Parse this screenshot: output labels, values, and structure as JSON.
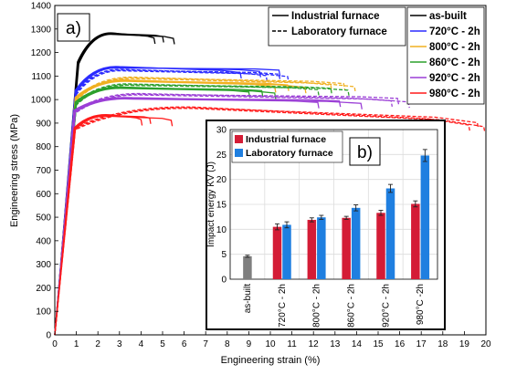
{
  "chart_data": [
    {
      "type": "line",
      "panel_label": "a)",
      "xlabel": "Engineering strain (%)",
      "ylabel": "Engineering stress (MPa)",
      "xlim": [
        0,
        20
      ],
      "ylim": [
        0,
        1400
      ],
      "x_ticks": [
        0,
        1,
        2,
        3,
        4,
        5,
        6,
        7,
        8,
        9,
        10,
        11,
        12,
        13,
        14,
        15,
        16,
        17,
        18,
        19,
        20
      ],
      "y_ticks": [
        0,
        100,
        200,
        300,
        400,
        500,
        600,
        700,
        800,
        900,
        1000,
        1100,
        1200,
        1300,
        1400
      ],
      "grid": false,
      "legend_style": {
        "position": "top-center",
        "entries": [
          {
            "label": "Industrial furnace",
            "line": "solid",
            "color": "#000000"
          },
          {
            "label": "Laboratory furnace",
            "line": "dashed",
            "color": "#000000"
          }
        ]
      },
      "legend_conditions": {
        "position": "top-right",
        "entries": [
          {
            "label": "as-built",
            "color": "#000000"
          },
          {
            "label": "720°C - 2h",
            "color": "#2b2bff"
          },
          {
            "label": "800°C - 2h",
            "color": "#f0b020"
          },
          {
            "label": "860°C - 2h",
            "color": "#2ca02c"
          },
          {
            "label": "920°C - 2h",
            "color": "#9b3fd6"
          },
          {
            "label": "980°C - 2h",
            "color": "#ff1a1a"
          }
        ]
      },
      "series": [
        {
          "name": "as-built",
          "color": "#000000",
          "dash": false,
          "elastic_end": [
            1.05,
            1160
          ],
          "peak": [
            2.7,
            1283
          ],
          "fracture": [
            [
              4.6,
              1262
            ],
            [
              5.0,
              1268
            ],
            [
              5.5,
              1260
            ]
          ]
        },
        {
          "name": "720°C - 2h",
          "color": "#2b2bff",
          "dash": false,
          "elastic_end": [
            0.95,
            1040
          ],
          "peak": [
            3.0,
            1140
          ],
          "fracture": [
            [
              8.6,
              1115
            ],
            [
              9.5,
              1120
            ],
            [
              10.4,
              1125
            ]
          ]
        },
        {
          "name": "720°C - 2h",
          "color": "#2b2bff",
          "dash": true,
          "elastic_end": [
            0.95,
            1030
          ],
          "peak": [
            3.2,
            1128
          ],
          "fracture": [
            [
              9.8,
              1102
            ],
            [
              10.4,
              1108
            ],
            [
              10.8,
              1098
            ]
          ]
        },
        {
          "name": "800°C - 2h",
          "color": "#f0b020",
          "dash": false,
          "elastic_end": [
            0.95,
            1010
          ],
          "peak": [
            3.5,
            1083
          ],
          "fracture": [
            [
              10.2,
              1055
            ],
            [
              10.8,
              1062
            ],
            [
              11.6,
              1052
            ]
          ]
        },
        {
          "name": "800°C - 2h",
          "color": "#f0b020",
          "dash": true,
          "elastic_end": [
            0.95,
            1005
          ],
          "peak": [
            3.8,
            1095
          ],
          "fracture": [
            [
              12.8,
              1062
            ],
            [
              13.4,
              1068
            ],
            [
              13.9,
              1055
            ]
          ]
        },
        {
          "name": "860°C - 2h",
          "color": "#2ca02c",
          "dash": false,
          "elastic_end": [
            0.95,
            990
          ],
          "peak": [
            3.3,
            1053
          ],
          "fracture": [
            [
              9.0,
              1032
            ],
            [
              9.6,
              1038
            ],
            [
              10.2,
              1028
            ]
          ]
        },
        {
          "name": "860°C - 2h",
          "color": "#2ca02c",
          "dash": true,
          "elastic_end": [
            0.95,
            985
          ],
          "peak": [
            3.6,
            1066
          ],
          "fracture": [
            [
              12.2,
              1042
            ],
            [
              12.8,
              1048
            ],
            [
              13.6,
              1040
            ]
          ]
        },
        {
          "name": "920°C - 2h",
          "color": "#9b3fd6",
          "dash": false,
          "elastic_end": [
            0.9,
            955
          ],
          "peak": [
            3.6,
            1008
          ],
          "fracture": [
            [
              12.2,
              988
            ],
            [
              13.2,
              994
            ],
            [
              14.2,
              984
            ]
          ]
        },
        {
          "name": "920°C - 2h",
          "color": "#9b3fd6",
          "dash": true,
          "elastic_end": [
            0.9,
            950
          ],
          "peak": [
            4.2,
            1025
          ],
          "fracture": [
            [
              15.6,
              995
            ],
            [
              15.9,
              1005
            ],
            [
              16.4,
              990
            ]
          ]
        },
        {
          "name": "980°C - 2h",
          "color": "#ff1a1a",
          "dash": false,
          "elastic_end": [
            0.9,
            880
          ],
          "peak": [
            2.6,
            935
          ],
          "fracture": [
            [
              4.0,
              915
            ],
            [
              4.4,
              922
            ],
            [
              5.4,
              912
            ]
          ]
        },
        {
          "name": "980°C - 2h",
          "color": "#ff1a1a",
          "dash": true,
          "elastic_end": [
            0.9,
            880
          ],
          "peak": [
            6.5,
            968
          ],
          "fracture": [
            [
              19.2,
              892
            ],
            [
              19.6,
              902
            ],
            [
              19.9,
              885
            ]
          ]
        }
      ]
    },
    {
      "type": "bar",
      "panel_label": "b)",
      "ylabel": "Impact energy KV (J)",
      "ylim": [
        0,
        30
      ],
      "y_ticks": [
        0,
        5,
        10,
        15,
        20,
        25,
        30
      ],
      "grid": true,
      "legend_position": "top-left",
      "categories": [
        "as-built",
        "720°C - 2h",
        "800°C - 2h",
        "860°C - 2h",
        "920°C - 2h",
        "980°C -2h"
      ],
      "series": [
        {
          "name": "as-built",
          "color": "#7f7f7f",
          "values": [
            4.6,
            null,
            null,
            null,
            null,
            null
          ],
          "errors": [
            0.2,
            null,
            null,
            null,
            null,
            null
          ],
          "in_legend": false
        },
        {
          "name": "Industrial furnace",
          "color": "#d41c36",
          "values": [
            null,
            10.5,
            11.9,
            12.3,
            13.3,
            15.1
          ],
          "errors": [
            null,
            0.6,
            0.4,
            0.3,
            0.5,
            0.6
          ],
          "in_legend": true
        },
        {
          "name": "Laboratory furnace",
          "color": "#1f7fe0",
          "values": [
            null,
            10.9,
            12.4,
            14.3,
            18.2,
            24.8
          ],
          "errors": [
            null,
            0.6,
            0.4,
            0.6,
            0.8,
            1.2
          ],
          "in_legend": true
        }
      ]
    }
  ]
}
